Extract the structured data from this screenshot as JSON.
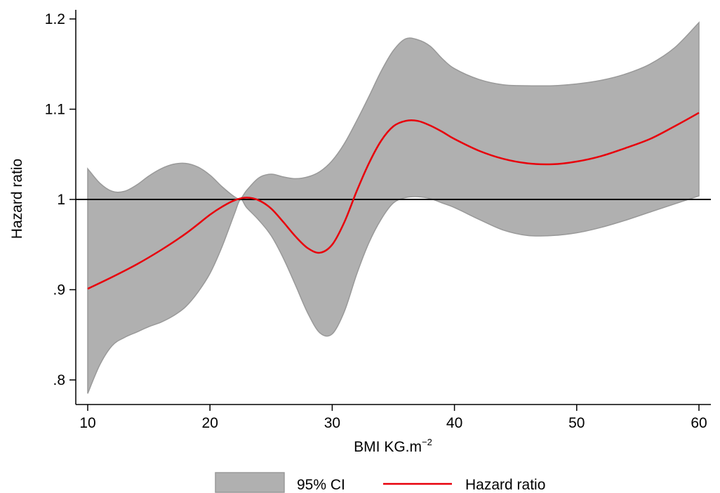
{
  "chart_data": {
    "type": "line",
    "title": "",
    "xlabel": "BMI KG.m",
    "xlabel_superscript": "−2",
    "ylabel": "Hazard ratio",
    "xlim": [
      10,
      60
    ],
    "ylim": [
      0.8,
      1.2
    ],
    "x_ticks": [
      10,
      20,
      30,
      40,
      50,
      60
    ],
    "x_tick_labels": [
      "10",
      "20",
      "30",
      "40",
      "50",
      "60"
    ],
    "y_ticks": [
      0.8,
      0.9,
      1.0,
      1.1,
      1.2
    ],
    "y_tick_labels": [
      ".8",
      ".9",
      "1",
      "1.1",
      "1.2"
    ],
    "reference_line": 1,
    "grid": false,
    "legend_position": "bottom",
    "colors": {
      "ci_fill": "#b0b0b0",
      "ci_edge": "#999999",
      "line": "#e8000b",
      "reference": "#000000"
    },
    "series": [
      {
        "name": "Hazard ratio",
        "x": [
          10,
          12,
          14,
          16,
          18,
          20,
          21,
          22,
          23,
          24,
          25,
          26,
          27,
          28,
          29,
          30,
          31,
          32,
          33,
          34,
          35,
          36,
          37,
          38,
          39,
          40,
          42,
          44,
          46,
          48,
          50,
          52,
          54,
          56,
          58,
          60
        ],
        "y": [
          0.901,
          0.914,
          0.928,
          0.944,
          0.962,
          0.983,
          0.992,
          0.999,
          1.002,
          0.999,
          0.99,
          0.975,
          0.959,
          0.946,
          0.941,
          0.95,
          0.975,
          1.009,
          1.04,
          1.065,
          1.081,
          1.087,
          1.087,
          1.082,
          1.075,
          1.067,
          1.054,
          1.045,
          1.04,
          1.039,
          1.042,
          1.048,
          1.057,
          1.067,
          1.081,
          1.096
        ]
      },
      {
        "name": "95% CI",
        "x": [
          10,
          11,
          12,
          13,
          14,
          15,
          16,
          17,
          18,
          19,
          20,
          21,
          22,
          22.5,
          23,
          24,
          25,
          26,
          27,
          28,
          29,
          30,
          31,
          32,
          33,
          34,
          35,
          36,
          37,
          38,
          39,
          40,
          42,
          44,
          46,
          48,
          50,
          52,
          54,
          56,
          58,
          60
        ],
        "upper": [
          1.034,
          1.018,
          1.009,
          1.009,
          1.016,
          1.026,
          1.034,
          1.039,
          1.04,
          1.036,
          1.027,
          1.014,
          1.003,
          1.001,
          1.01,
          1.024,
          1.028,
          1.025,
          1.023,
          1.025,
          1.031,
          1.043,
          1.062,
          1.087,
          1.114,
          1.142,
          1.165,
          1.178,
          1.177,
          1.17,
          1.156,
          1.145,
          1.133,
          1.127,
          1.126,
          1.126,
          1.128,
          1.132,
          1.139,
          1.15,
          1.168,
          1.196
        ],
        "lower": [
          0.785,
          0.817,
          0.838,
          0.847,
          0.853,
          0.859,
          0.864,
          0.871,
          0.881,
          0.897,
          0.918,
          0.948,
          0.984,
          1.0,
          0.991,
          0.977,
          0.96,
          0.935,
          0.905,
          0.874,
          0.852,
          0.851,
          0.876,
          0.917,
          0.952,
          0.978,
          0.996,
          1.002,
          1.003,
          1.001,
          0.996,
          0.991,
          0.978,
          0.966,
          0.96,
          0.96,
          0.963,
          0.969,
          0.977,
          0.986,
          0.995,
          1.004
        ]
      }
    ],
    "legend": [
      {
        "name": "95% CI",
        "symbol": "area"
      },
      {
        "name": "Hazard ratio",
        "symbol": "line"
      }
    ]
  }
}
